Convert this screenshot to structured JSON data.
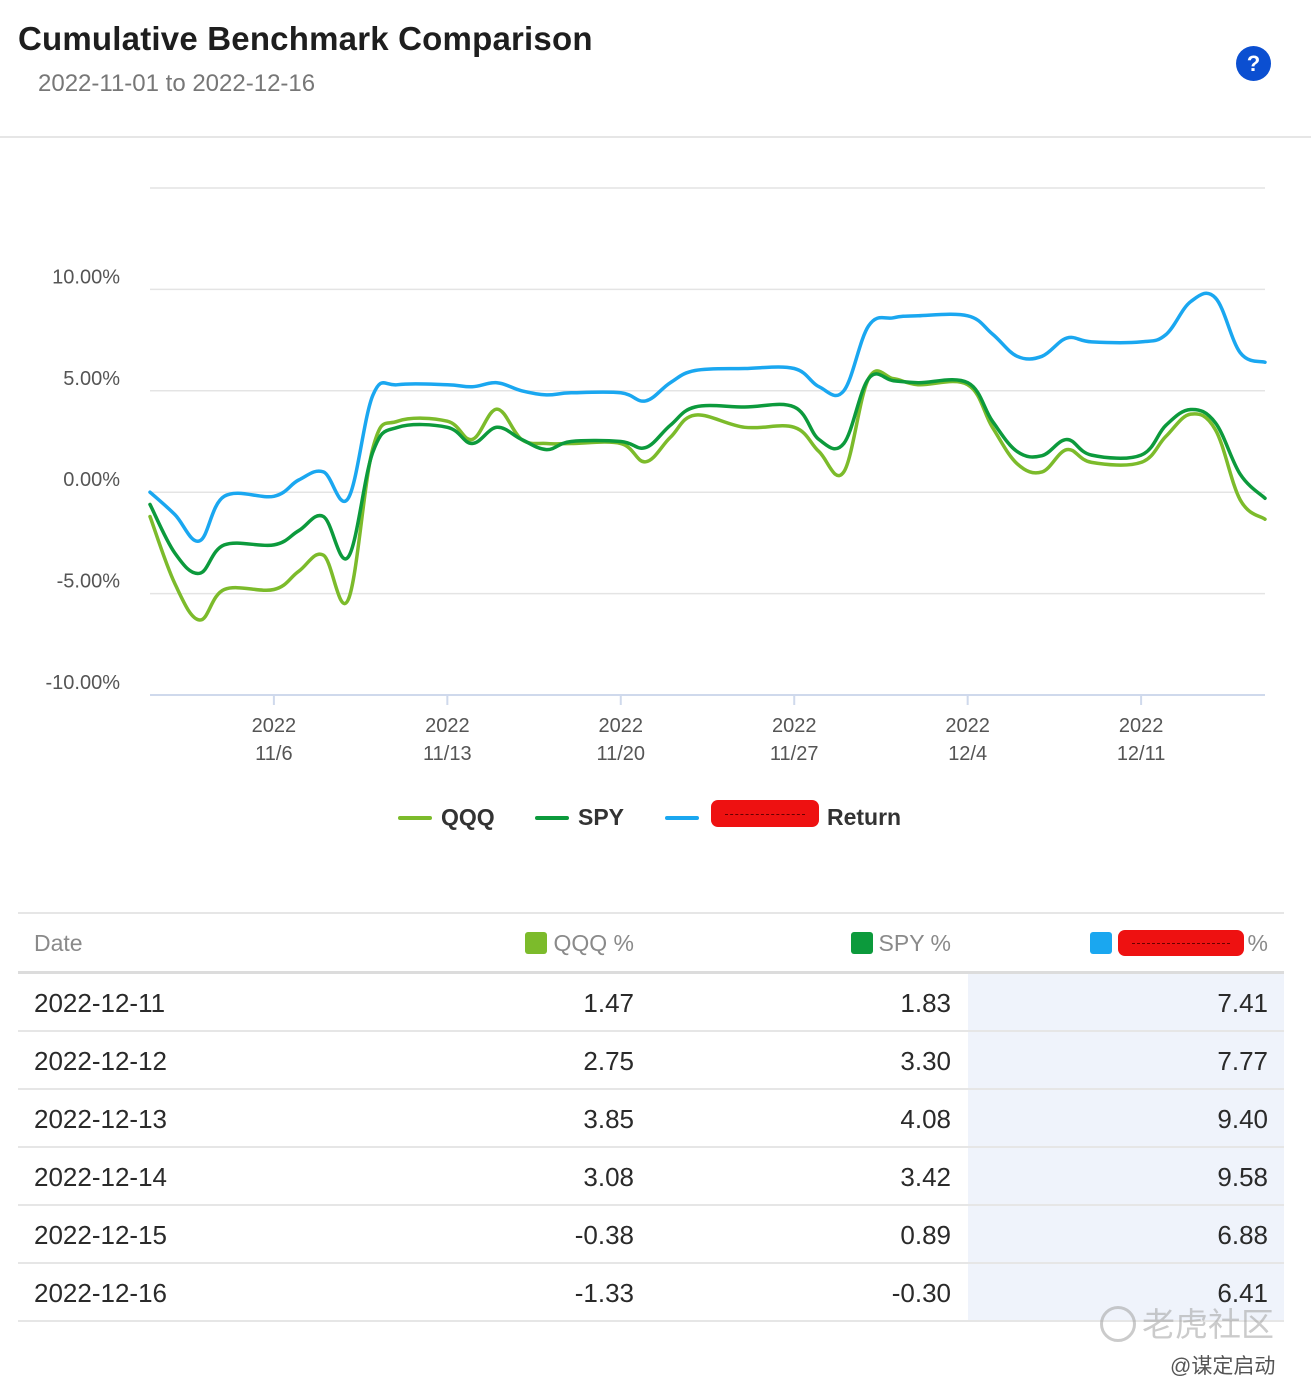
{
  "header": {
    "title": "Cumulative Benchmark Comparison",
    "date_range": "2022-11-01 to 2022-12-16",
    "help_label": "?"
  },
  "colors": {
    "qqq": "#7cbb2b",
    "spy": "#0c9a3c",
    "return": "#1aa7f0",
    "accent": "#0b4fd1",
    "redaction": "#ee1111"
  },
  "chart_data": {
    "type": "line",
    "title": "Cumulative Benchmark Comparison",
    "xlabel": "",
    "ylabel": "",
    "ylim": [
      -10,
      15
    ],
    "y_ticks": [
      {
        "value": 10,
        "label": "10.00%"
      },
      {
        "value": 5,
        "label": "5.00%"
      },
      {
        "value": 0,
        "label": "0.00%"
      },
      {
        "value": -5,
        "label": "-5.00%"
      },
      {
        "value": -10,
        "label": "-10.00%"
      }
    ],
    "x_ticks": [
      {
        "date": "2022-11-06",
        "year": "2022",
        "label": "11/6"
      },
      {
        "date": "2022-11-13",
        "year": "2022",
        "label": "11/13"
      },
      {
        "date": "2022-11-20",
        "year": "2022",
        "label": "11/20"
      },
      {
        "date": "2022-11-27",
        "year": "2022",
        "label": "11/27"
      },
      {
        "date": "2022-12-04",
        "year": "2022",
        "label": "12/4"
      },
      {
        "date": "2022-12-11",
        "year": "2022",
        "label": "12/11"
      }
    ],
    "x_start": "2022-11-01",
    "x_end": "2022-12-16",
    "grid": true,
    "legend_position": "bottom",
    "series": [
      {
        "key": "qqq",
        "name": "QQQ",
        "points": [
          [
            "2022-11-01",
            -1.2
          ],
          [
            "2022-11-02",
            -4.5
          ],
          [
            "2022-11-03",
            -6.3
          ],
          [
            "2022-11-04",
            -4.8
          ],
          [
            "2022-11-06",
            -4.8
          ],
          [
            "2022-11-07",
            -3.9
          ],
          [
            "2022-11-08",
            -3.1
          ],
          [
            "2022-11-09",
            -5.3
          ],
          [
            "2022-11-10",
            2.2
          ],
          [
            "2022-11-11",
            3.5
          ],
          [
            "2022-11-13",
            3.5
          ],
          [
            "2022-11-14",
            2.6
          ],
          [
            "2022-11-15",
            4.1
          ],
          [
            "2022-11-16",
            2.6
          ],
          [
            "2022-11-17",
            2.4
          ],
          [
            "2022-11-18",
            2.4
          ],
          [
            "2022-11-20",
            2.4
          ],
          [
            "2022-11-21",
            1.5
          ],
          [
            "2022-11-22",
            2.7
          ],
          [
            "2022-11-23",
            3.8
          ],
          [
            "2022-11-25",
            3.2
          ],
          [
            "2022-11-27",
            3.2
          ],
          [
            "2022-11-28",
            2.0
          ],
          [
            "2022-11-29",
            1.0
          ],
          [
            "2022-11-30",
            5.6
          ],
          [
            "2022-12-01",
            5.6
          ],
          [
            "2022-12-02",
            5.3
          ],
          [
            "2022-12-04",
            5.3
          ],
          [
            "2022-12-05",
            3.2
          ],
          [
            "2022-12-06",
            1.4
          ],
          [
            "2022-12-07",
            1.0
          ],
          [
            "2022-12-08",
            2.1
          ],
          [
            "2022-12-09",
            1.47
          ],
          [
            "2022-12-11",
            1.47
          ],
          [
            "2022-12-12",
            2.75
          ],
          [
            "2022-12-13",
            3.85
          ],
          [
            "2022-12-14",
            3.08
          ],
          [
            "2022-12-15",
            -0.38
          ],
          [
            "2022-12-16",
            -1.33
          ]
        ]
      },
      {
        "key": "spy",
        "name": "SPY",
        "points": [
          [
            "2022-11-01",
            -0.6
          ],
          [
            "2022-11-02",
            -3.0
          ],
          [
            "2022-11-03",
            -4.0
          ],
          [
            "2022-11-04",
            -2.6
          ],
          [
            "2022-11-06",
            -2.6
          ],
          [
            "2022-11-07",
            -1.9
          ],
          [
            "2022-11-08",
            -1.2
          ],
          [
            "2022-11-09",
            -3.2
          ],
          [
            "2022-11-10",
            2.0
          ],
          [
            "2022-11-11",
            3.2
          ],
          [
            "2022-11-13",
            3.2
          ],
          [
            "2022-11-14",
            2.4
          ],
          [
            "2022-11-15",
            3.2
          ],
          [
            "2022-11-16",
            2.6
          ],
          [
            "2022-11-17",
            2.1
          ],
          [
            "2022-11-18",
            2.5
          ],
          [
            "2022-11-20",
            2.5
          ],
          [
            "2022-11-21",
            2.2
          ],
          [
            "2022-11-22",
            3.3
          ],
          [
            "2022-11-23",
            4.2
          ],
          [
            "2022-11-25",
            4.2
          ],
          [
            "2022-11-27",
            4.2
          ],
          [
            "2022-11-28",
            2.6
          ],
          [
            "2022-11-29",
            2.4
          ],
          [
            "2022-11-30",
            5.6
          ],
          [
            "2022-12-01",
            5.5
          ],
          [
            "2022-12-02",
            5.4
          ],
          [
            "2022-12-04",
            5.4
          ],
          [
            "2022-12-05",
            3.5
          ],
          [
            "2022-12-06",
            2.0
          ],
          [
            "2022-12-07",
            1.8
          ],
          [
            "2022-12-08",
            2.6
          ],
          [
            "2022-12-09",
            1.83
          ],
          [
            "2022-12-11",
            1.83
          ],
          [
            "2022-12-12",
            3.3
          ],
          [
            "2022-12-13",
            4.08
          ],
          [
            "2022-12-14",
            3.42
          ],
          [
            "2022-12-15",
            0.89
          ],
          [
            "2022-12-16",
            -0.3
          ]
        ]
      },
      {
        "key": "return",
        "name": "Return",
        "points": [
          [
            "2022-11-01",
            0.0
          ],
          [
            "2022-11-02",
            -1.1
          ],
          [
            "2022-11-03",
            -2.4
          ],
          [
            "2022-11-04",
            -0.2
          ],
          [
            "2022-11-06",
            -0.2
          ],
          [
            "2022-11-07",
            0.6
          ],
          [
            "2022-11-08",
            1.0
          ],
          [
            "2022-11-09",
            -0.3
          ],
          [
            "2022-11-10",
            4.8
          ],
          [
            "2022-11-11",
            5.3
          ],
          [
            "2022-11-13",
            5.3
          ],
          [
            "2022-11-14",
            5.2
          ],
          [
            "2022-11-15",
            5.4
          ],
          [
            "2022-11-16",
            5.0
          ],
          [
            "2022-11-17",
            4.8
          ],
          [
            "2022-11-18",
            4.9
          ],
          [
            "2022-11-20",
            4.9
          ],
          [
            "2022-11-21",
            4.5
          ],
          [
            "2022-11-22",
            5.4
          ],
          [
            "2022-11-23",
            6.0
          ],
          [
            "2022-11-25",
            6.1
          ],
          [
            "2022-11-27",
            6.1
          ],
          [
            "2022-11-28",
            5.2
          ],
          [
            "2022-11-29",
            5.0
          ],
          [
            "2022-11-30",
            8.2
          ],
          [
            "2022-12-01",
            8.6
          ],
          [
            "2022-12-02",
            8.7
          ],
          [
            "2022-12-04",
            8.7
          ],
          [
            "2022-12-05",
            7.8
          ],
          [
            "2022-12-06",
            6.7
          ],
          [
            "2022-12-07",
            6.7
          ],
          [
            "2022-12-08",
            7.6
          ],
          [
            "2022-12-09",
            7.41
          ],
          [
            "2022-12-11",
            7.41
          ],
          [
            "2022-12-12",
            7.77
          ],
          [
            "2022-12-13",
            9.4
          ],
          [
            "2022-12-14",
            9.58
          ],
          [
            "2022-12-15",
            6.88
          ],
          [
            "2022-12-16",
            6.41
          ]
        ]
      }
    ]
  },
  "legend": {
    "items": [
      {
        "key": "qqq",
        "label": "QQQ"
      },
      {
        "key": "spy",
        "label": "SPY"
      },
      {
        "key": "return",
        "label": "Return"
      }
    ]
  },
  "table": {
    "headers": {
      "date": "Date",
      "qqq": "QQQ %",
      "spy": "SPY %",
      "return_suffix": "%"
    },
    "rows": [
      {
        "date": "2022-12-11",
        "qqq": "1.47",
        "spy": "1.83",
        "ret": "7.41"
      },
      {
        "date": "2022-12-12",
        "qqq": "2.75",
        "spy": "3.30",
        "ret": "7.77"
      },
      {
        "date": "2022-12-13",
        "qqq": "3.85",
        "spy": "4.08",
        "ret": "9.40"
      },
      {
        "date": "2022-12-14",
        "qqq": "3.08",
        "spy": "3.42",
        "ret": "9.58"
      },
      {
        "date": "2022-12-15",
        "qqq": "-0.38",
        "spy": "0.89",
        "ret": "6.88"
      },
      {
        "date": "2022-12-16",
        "qqq": "-1.33",
        "spy": "-0.30",
        "ret": "6.41"
      }
    ]
  },
  "watermark": {
    "brand": "老虎社区",
    "author": "@谋定启动"
  }
}
